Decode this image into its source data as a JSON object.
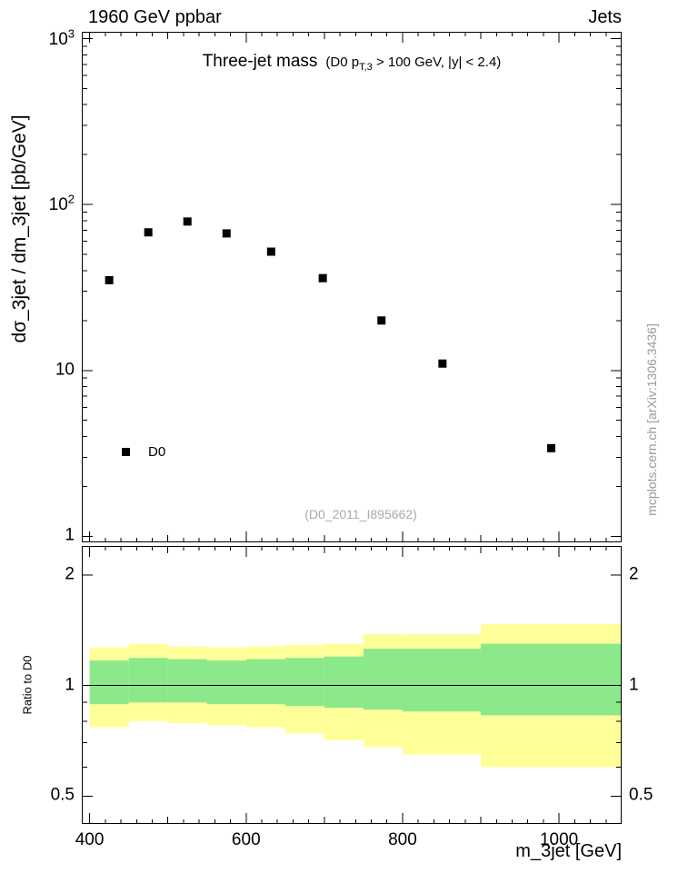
{
  "header": {
    "left": "1960 GeV ppbar",
    "right": "Jets"
  },
  "watermark": "mcplots.cern.ch [arXiv:1306.3436]",
  "colors": {
    "marker": "#000000",
    "band_outer": "#ffff99",
    "band_inner": "#8be88b",
    "watermark_text": "#999999",
    "annotation_text": "#aaaaaa",
    "frame": "#000000"
  },
  "chart_data": [
    {
      "type": "scatter",
      "panel": "main",
      "title": "Three-jet mass",
      "subtitle": "(D0 p_T,3 > 100 GeV, |y| < 2.4)",
      "subtitle_parts": {
        "pre": "(D0 p",
        "sub": "T,3",
        "post": " > 100 GeV, |y| < 2.4)"
      },
      "ylabel": "dσ_3jet / dm_3jet [pb/GeV]",
      "xscale": "linear",
      "yscale": "log",
      "xlim": [
        390,
        1080
      ],
      "ylim": [
        0.92,
        1100
      ],
      "xticks": [
        400,
        600,
        800,
        1000
      ],
      "yticks": [
        {
          "v": 1,
          "label": "1"
        },
        {
          "v": 10,
          "label": "10"
        },
        {
          "v": 100,
          "label": "10^2"
        },
        {
          "v": 1000,
          "label": "10^3"
        }
      ],
      "series": [
        {
          "name": "D0",
          "marker": "filled-square",
          "color": "#000000",
          "x": [
            425,
            475,
            525,
            575,
            632,
            698,
            773,
            851,
            990
          ],
          "y": [
            35,
            68,
            79,
            67,
            52,
            36,
            20,
            11,
            3.4
          ]
        }
      ],
      "legend": {
        "label": "D0",
        "marker": "filled-square"
      },
      "annotation": "(D0_2011_I895662)"
    },
    {
      "type": "band",
      "panel": "ratio",
      "ylabel": "Ratio to D0",
      "xlabel": "m_3jet [GeV]",
      "xscale": "linear",
      "yscale": "log",
      "xlim": [
        390,
        1080
      ],
      "ylim": [
        0.42,
        2.4
      ],
      "xticks": [
        400,
        600,
        800,
        1000
      ],
      "yticks": [
        {
          "v": 0.5,
          "label": "0.5"
        },
        {
          "v": 1,
          "label": "1"
        },
        {
          "v": 2,
          "label": "2"
        }
      ],
      "reference_line": 1,
      "bin_edges": [
        400,
        450,
        500,
        550,
        600,
        650,
        700,
        750,
        800,
        900,
        1080
      ],
      "bands": [
        {
          "name": "outer-uncertainty",
          "color": "#ffff99",
          "hi": [
            1.27,
            1.3,
            1.28,
            1.27,
            1.28,
            1.29,
            1.3,
            1.38,
            1.38,
            1.47
          ],
          "lo": [
            0.77,
            0.8,
            0.79,
            0.78,
            0.77,
            0.74,
            0.71,
            0.68,
            0.65,
            0.6
          ]
        },
        {
          "name": "inner-uncertainty",
          "color": "#8be88b",
          "hi": [
            1.17,
            1.19,
            1.18,
            1.17,
            1.18,
            1.19,
            1.2,
            1.26,
            1.26,
            1.3
          ],
          "lo": [
            0.89,
            0.9,
            0.9,
            0.89,
            0.89,
            0.88,
            0.87,
            0.86,
            0.85,
            0.83
          ]
        }
      ]
    }
  ]
}
